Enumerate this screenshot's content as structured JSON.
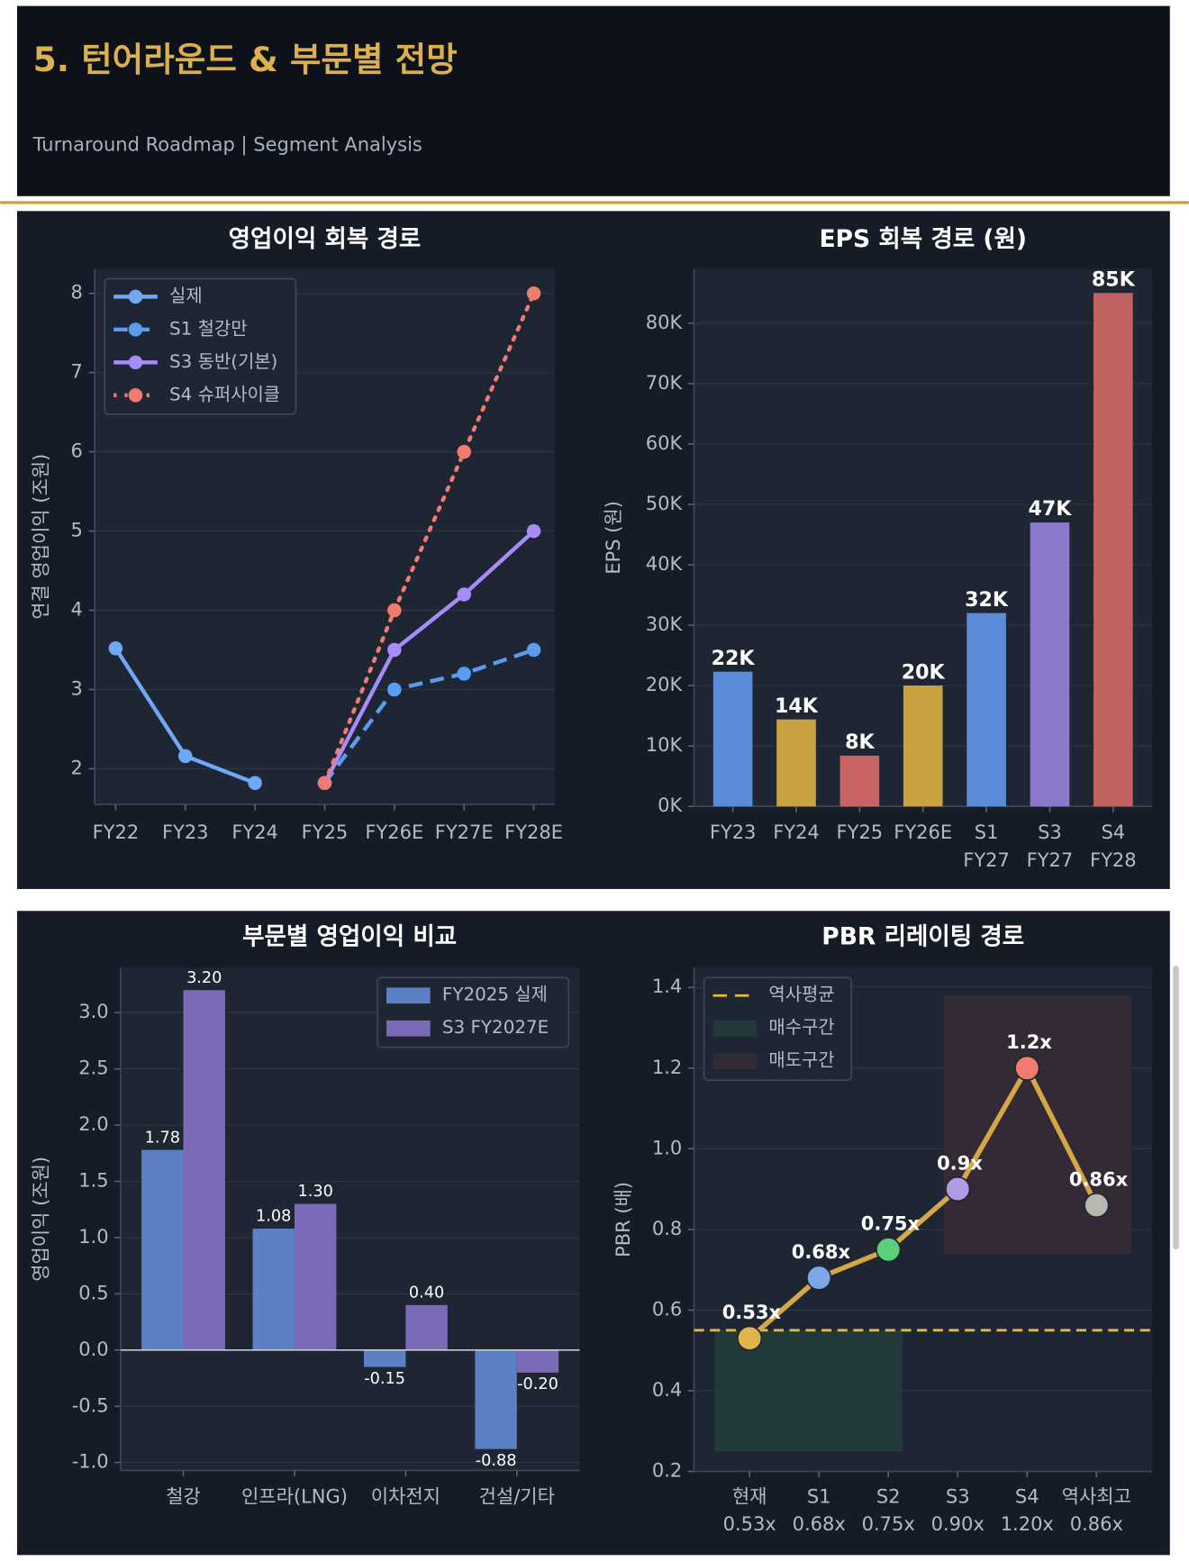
{
  "header": {
    "title": "5. 턴어라운드 & 부문별 전망",
    "subtitle": "Turnaround Roadmap | Segment Analysis"
  },
  "chart_data": [
    {
      "type": "line",
      "title": "영업이익 회복 경로",
      "ylabel": "연결 영업이익 (조원)",
      "categories": [
        "FY22",
        "FY23",
        "FY24",
        "FY25",
        "FY26E",
        "FY27E",
        "FY28E"
      ],
      "series": [
        {
          "name": "실제",
          "color": "#6ea8f7",
          "dash": "solid",
          "values": [
            3.52,
            2.16,
            1.82,
            null,
            null,
            null,
            null
          ]
        },
        {
          "name": "S1 철강만",
          "color": "#5b9cf0",
          "dash": "dashed",
          "values": [
            null,
            null,
            null,
            1.82,
            3.0,
            3.2,
            3.5
          ]
        },
        {
          "name": "S3 동반(기본)",
          "color": "#a78bfa",
          "dash": "solid",
          "values": [
            null,
            null,
            null,
            1.82,
            3.5,
            4.2,
            5.0
          ]
        },
        {
          "name": "S4 슈퍼사이클",
          "color": "#f07b6e",
          "dash": "dotted",
          "values": [
            null,
            null,
            null,
            1.82,
            4.0,
            6.0,
            8.0
          ]
        }
      ],
      "ylim": [
        1.55,
        8.31
      ],
      "yticks": [
        2,
        3,
        4,
        5,
        6,
        7,
        8
      ],
      "grid": true,
      "legend": "upper left"
    },
    {
      "type": "bar",
      "title": "EPS 회복 경로 (원)",
      "ylabel": "EPS (원)",
      "categories": [
        "FY23",
        "FY24",
        "FY25",
        "FY26E",
        "S1\nFY27",
        "S3\nFY27",
        "S4\nFY28"
      ],
      "values": [
        22300,
        14400,
        8400,
        20000,
        32000,
        47000,
        85000
      ],
      "value_labels": [
        "22K",
        "14K",
        "8K",
        "20K",
        "32K",
        "47K",
        "85K"
      ],
      "colors": [
        "#5b8bd6",
        "#c9a23f",
        "#c96464",
        "#c9a23f",
        "#5b8bd6",
        "#8b78cc",
        "#c06262"
      ],
      "ylim": [
        0,
        89000
      ],
      "yticks": [
        {
          "value": 0,
          "label": "0K"
        },
        {
          "value": 10000,
          "label": "10K"
        },
        {
          "value": 20000,
          "label": "20K"
        },
        {
          "value": 30000,
          "label": "30K"
        },
        {
          "value": 40000,
          "label": "40K"
        },
        {
          "value": 50000,
          "label": "50K"
        },
        {
          "value": 60000,
          "label": "60K"
        },
        {
          "value": 70000,
          "label": "70K"
        },
        {
          "value": 80000,
          "label": "80K"
        }
      ],
      "grid": true
    },
    {
      "type": "bar",
      "title": "부문별 영업이익 비교",
      "ylabel": "영업이익 (조원)",
      "categories": [
        "철강",
        "인프라(LNG)",
        "이차전지",
        "건설/기타"
      ],
      "series": [
        {
          "name": "FY2025 실제",
          "color": "#5b80c4",
          "values": [
            1.78,
            1.08,
            -0.15,
            -0.88
          ],
          "value_labels": [
            "1.78",
            "1.08",
            "-0.15",
            "-0.88"
          ]
        },
        {
          "name": "S3 FY2027E",
          "color": "#7b6ab8",
          "values": [
            3.2,
            1.3,
            0.4,
            -0.2
          ],
          "value_labels": [
            "3.20",
            "1.30",
            "0.40",
            "-0.20"
          ]
        }
      ],
      "ylim": [
        -1.07,
        3.4
      ],
      "yticks": [
        {
          "value": -1,
          "label": "-1.0"
        },
        -0.5,
        {
          "value": 0,
          "label": "0.0"
        },
        0.5,
        {
          "value": 1,
          "label": "1.0"
        },
        1.5,
        {
          "value": 2,
          "label": "2.0"
        },
        2.5,
        {
          "value": 3,
          "label": "3.0"
        }
      ],
      "grid": true,
      "legend": "upper right"
    },
    {
      "type": "line",
      "title": "PBR 리레이팅 경로",
      "ylabel": "PBR (배)",
      "categories": [
        "현재\n0.53x",
        "S1\n0.68x",
        "S2\n0.75x",
        "S3\n0.90x",
        "S4\n1.20x",
        "역사최고\n0.86x"
      ],
      "values": [
        0.53,
        0.68,
        0.75,
        0.9,
        1.2,
        0.86
      ],
      "value_labels": [
        "0.53x",
        "0.68x",
        "0.75x",
        "0.9x",
        "1.2x",
        "0.86x"
      ],
      "color": "#d4a843",
      "point_colors": [
        "#e0b64a",
        "#7aa7e6",
        "#5ccf7a",
        "#b39ae8",
        "#f07b6e",
        "#b8b8b0"
      ],
      "hline": {
        "name": "역사평균",
        "value": 0.55,
        "color": "#e6b93a"
      },
      "zones": [
        {
          "name": "매수구간",
          "color": "#24403d",
          "x": [
            -0.5,
            2.2
          ],
          "y": [
            0.25,
            0.55
          ]
        },
        {
          "name": "매도구간",
          "color": "#3b2c37",
          "x": [
            2.8,
            5.5
          ],
          "y": [
            0.74,
            1.38
          ]
        }
      ],
      "xlim": [
        -0.8,
        5.8
      ],
      "ylim": [
        0.2,
        1.449
      ],
      "yticks": [
        0.2,
        0.4,
        0.6,
        0.8,
        {
          "value": 1.0,
          "label": "1.0"
        },
        1.2,
        1.4
      ],
      "grid": true,
      "legend": "upper left"
    }
  ]
}
